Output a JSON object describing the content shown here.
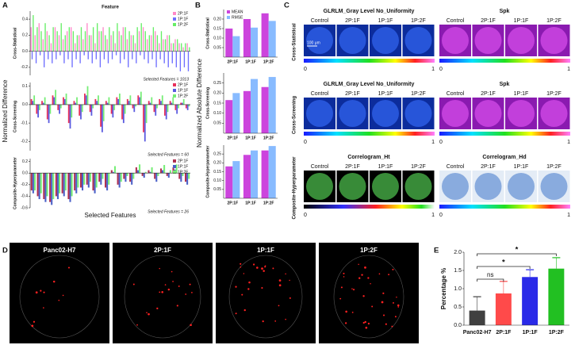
{
  "figure": {
    "panel_labels": [
      "A",
      "B",
      "C",
      "D",
      "E"
    ],
    "panel_a": {
      "ylabel": "Normalized Difference",
      "xlabel": "Selected Features"
    },
    "panel_b": {
      "ylabel": "Normalized Absolute Difference"
    },
    "panel_c": {
      "columns": [
        "Control",
        "2P:1F",
        "1P:1F",
        "1P:2F"
      ],
      "rows": [
        {
          "label": "Cross-Statistical",
          "titles": [
            "GLRLM_Gray Level No_Uniformity",
            "Spk"
          ]
        },
        {
          "label": "Cross-Screening",
          "titles": [
            "GLRLM_Gray Level No_Uniformity",
            "Spk"
          ]
        },
        {
          "label": "Composite-Hyperparameter",
          "titles": [
            "Correlogram_Ht",
            "Correlogram_Hd"
          ]
        }
      ],
      "colorbar_ticks": [
        0,
        1
      ],
      "scale_bar": "100 μm"
    },
    "panel_d": {
      "labels": [
        "Panc02-H7",
        "2P:1F",
        "1P:1F",
        "1P:2F"
      ]
    }
  },
  "chart_data": [
    {
      "type": "bar",
      "title": "Feature",
      "ylabel": "Cross-Statistical",
      "annotation": "Selected Features = 1013",
      "legend": "upper right",
      "ylim": [
        -0.3,
        0.5
      ],
      "yticks": [
        -0.2,
        {
          "value": 0,
          "label": "0.0"
        },
        0.2,
        0.4
      ],
      "series": [
        {
          "name": "2P:1F",
          "color": "#ff88c8",
          "values": [
            0.3,
            0.2,
            0.35,
            0.15,
            0.25,
            0.1,
            0.3,
            0.2,
            0.15,
            0.25,
            0.3,
            0.1,
            0.2,
            0.15,
            0.35,
            0.2,
            0.1,
            0.25,
            0.3,
            0.15,
            0.2,
            0.1,
            0.25,
            0.3,
            0.15,
            0.2,
            0.1,
            0.25,
            0.3,
            0.15,
            0.2,
            0.25,
            0.1,
            0.15,
            0.2,
            0.1,
            0.15,
            0.1,
            0.05,
            0.1
          ]
        },
        {
          "name": "1P:1F",
          "color": "#6f6fff",
          "values": [
            -0.1,
            -0.15,
            -0.05,
            -0.2,
            -0.1,
            -0.15,
            -0.1,
            -0.05,
            -0.15,
            -0.1,
            -0.2,
            -0.1,
            -0.15,
            -0.05,
            -0.1,
            -0.15,
            -0.1,
            -0.2,
            -0.1,
            -0.15,
            -0.1,
            -0.05,
            -0.15,
            -0.1,
            -0.2,
            -0.1,
            -0.15,
            -0.05,
            -0.1,
            -0.15,
            -0.1,
            -0.2,
            -0.1,
            -0.15,
            -0.2,
            -0.15,
            -0.2,
            -0.25,
            -0.2,
            -0.25
          ]
        },
        {
          "name": "1P:2F",
          "color": "#66ee66",
          "values": [
            0.45,
            0.3,
            0.25,
            0.35,
            0.2,
            0.3,
            0.25,
            0.35,
            0.2,
            0.3,
            0.25,
            0.2,
            0.3,
            0.25,
            0.2,
            0.3,
            0.35,
            0.25,
            0.2,
            0.3,
            0.25,
            0.35,
            0.2,
            0.3,
            0.25,
            0.2,
            0.3,
            0.35,
            0.25,
            0.2,
            0.3,
            0.2,
            0.25,
            0.15,
            0.2,
            0.1,
            0.15,
            0.1,
            0.1,
            0.05
          ]
        }
      ]
    },
    {
      "type": "bar",
      "ylabel": "Cross-Screening",
      "annotation": "Selected Features = 60",
      "legend": "upper right",
      "ylim": [
        -0.25,
        0.12
      ],
      "yticks": [
        -0.2,
        -0.1,
        {
          "value": 0,
          "label": "0.0"
        },
        0.1
      ],
      "series": [
        {
          "name": "2P:1F",
          "color": "#e8305a",
          "values": [
            0.03,
            -0.05,
            0.02,
            -0.08,
            0.05,
            -0.03,
            0.04,
            -0.1,
            0.02,
            -0.06,
            0.06,
            -0.04,
            0.03,
            -0.12,
            0.02,
            -0.05,
            0.04,
            -0.08,
            0.03,
            -0.02,
            0.05,
            -0.15,
            0.02,
            -0.04,
            0.03,
            -0.06,
            0.02,
            -0.03,
            0.01,
            -0.02
          ]
        },
        {
          "name": "1P:1F",
          "color": "#5a5ae0",
          "values": [
            0.02,
            -0.07,
            0.01,
            -0.1,
            0.04,
            -0.05,
            0.03,
            -0.13,
            0.01,
            -0.08,
            0.05,
            -0.06,
            0.02,
            -0.15,
            0.01,
            -0.07,
            0.03,
            -0.1,
            0.02,
            -0.04,
            0.04,
            -0.2,
            0.01,
            -0.06,
            0.02,
            -0.08,
            0.01,
            -0.05,
            0.01,
            -0.03
          ]
        },
        {
          "name": "1P:2F",
          "color": "#77ee77",
          "values": [
            0.05,
            -0.03,
            0.04,
            -0.05,
            0.08,
            -0.02,
            0.06,
            -0.07,
            0.04,
            -0.04,
            0.1,
            -0.02,
            0.05,
            -0.09,
            0.04,
            -0.03,
            0.06,
            -0.05,
            0.05,
            -0.01,
            0.07,
            -0.1,
            0.04,
            -0.02,
            0.05,
            -0.04,
            0.04,
            -0.02,
            0.03,
            -0.01
          ]
        }
      ]
    },
    {
      "type": "bar",
      "ylabel": "Composite-Hyperparameter",
      "annotation": "Selected Features = 26",
      "legend": "upper right",
      "ylim": [
        -0.6,
        0.25
      ],
      "yticks": [
        -0.6,
        -0.4,
        -0.2,
        {
          "value": 0,
          "label": "0.0"
        },
        0.2
      ],
      "series": [
        {
          "name": "2P:1F",
          "color": "#b03050",
          "values": [
            -0.3,
            -0.4,
            -0.45,
            -0.5,
            -0.4,
            -0.35,
            -0.45,
            -0.3,
            -0.25,
            -0.2,
            -0.3,
            -0.15,
            -0.25,
            0.05,
            -0.2,
            -0.1,
            -0.15,
            0.1,
            -0.05,
            0.05,
            -0.1,
            0.08,
            -0.05,
            0.1,
            -0.1,
            -0.15
          ]
        },
        {
          "name": "1P:1F",
          "color": "#4a60c8",
          "values": [
            -0.35,
            -0.45,
            -0.5,
            -0.55,
            -0.45,
            -0.4,
            -0.5,
            -0.35,
            -0.3,
            -0.25,
            -0.35,
            -0.2,
            -0.3,
            0.02,
            -0.25,
            -0.15,
            -0.2,
            0.05,
            -0.08,
            0.02,
            -0.15,
            0.05,
            -0.08,
            0.06,
            -0.15,
            -0.2
          ]
        },
        {
          "name": "1P:2F",
          "color": "#77ee77",
          "values": [
            -0.3,
            -0.35,
            -0.4,
            -0.45,
            -0.35,
            -0.3,
            -0.4,
            -0.25,
            -0.2,
            -0.15,
            -0.25,
            -0.1,
            -0.2,
            0.12,
            -0.15,
            -0.05,
            -0.1,
            0.15,
            0.02,
            0.1,
            -0.05,
            0.14,
            0.05,
            0.15,
            -0.05,
            -0.1
          ]
        }
      ]
    },
    {
      "type": "bar",
      "ylabel": "Cross-Statistical",
      "legend": "upper left",
      "categories": [
        "2P:1F",
        "1P:1F",
        "1P:2F"
      ],
      "ylim": [
        0,
        0.25
      ],
      "yticks": [
        0.05,
        {
          "value": 0.1,
          "label": "0.10"
        },
        0.15,
        {
          "value": 0.2,
          "label": "0.20"
        }
      ],
      "series": [
        {
          "name": "MEAN",
          "color": "#cc44dd",
          "values": [
            0.15,
            0.2,
            0.23
          ]
        },
        {
          "name": "RMSE",
          "color": "#88bbff",
          "values": [
            0.11,
            0.155,
            0.19
          ]
        }
      ]
    },
    {
      "type": "bar",
      "ylabel": "Cross-Screening",
      "categories": [
        "2P:1F",
        "1P:1F",
        "1P:2F"
      ],
      "ylim": [
        0,
        0.3
      ],
      "yticks": [
        0.05,
        {
          "value": 0.1,
          "label": "0.10"
        },
        0.15,
        {
          "value": 0.2,
          "label": "0.20"
        },
        0.25
      ],
      "series": [
        {
          "name": "MEAN",
          "color": "#cc44dd",
          "values": [
            0.165,
            0.21,
            0.23
          ]
        },
        {
          "name": "RMSE",
          "color": "#88bbff",
          "values": [
            0.2,
            0.27,
            0.28
          ]
        }
      ]
    },
    {
      "type": "bar",
      "ylabel": "Composite-Hyperparameter",
      "categories": [
        "2P:1F",
        "1P:1F",
        "1P:2F"
      ],
      "ylim": [
        0,
        0.3
      ],
      "yticks": [
        0.05,
        {
          "value": 0.1,
          "label": "0.10"
        },
        0.15,
        {
          "value": 0.2,
          "label": "0.20"
        },
        0.25
      ],
      "series": [
        {
          "name": "MEAN",
          "color": "#cc44dd",
          "values": [
            0.18,
            0.245,
            0.27
          ]
        },
        {
          "name": "RMSE",
          "color": "#88bbff",
          "values": [
            0.21,
            0.27,
            0.295
          ]
        }
      ]
    },
    {
      "type": "bar",
      "ylabel": "Percentage %",
      "categories": [
        "Panc02-H7",
        "2P:1F",
        "1P:1F",
        "1P:2F"
      ],
      "values": [
        0.4,
        0.87,
        1.32,
        1.55
      ],
      "errors": [
        0.38,
        0.33,
        0.2,
        0.3
      ],
      "colors": [
        "#404040",
        "#ff4a4a",
        "#2a2ae8",
        "#22c022"
      ],
      "ylim": [
        0,
        2
      ],
      "yticks": [
        {
          "value": 0,
          "label": "0.0"
        },
        {
          "value": 0.5,
          "label": "0.5"
        },
        {
          "value": 1,
          "label": "1.0"
        },
        {
          "value": 1.5,
          "label": "1.5"
        },
        {
          "value": 2,
          "label": "2.0"
        }
      ],
      "comparisons": [
        {
          "label": "ns",
          "categories": [
            "Panc02-H7",
            "2P:1F"
          ]
        },
        {
          "label": "*",
          "categories": [
            "Panc02-H7",
            "1P:1F"
          ]
        },
        {
          "label": "*",
          "categories": [
            "Panc02-H7",
            "1P:2F"
          ]
        }
      ]
    }
  ]
}
